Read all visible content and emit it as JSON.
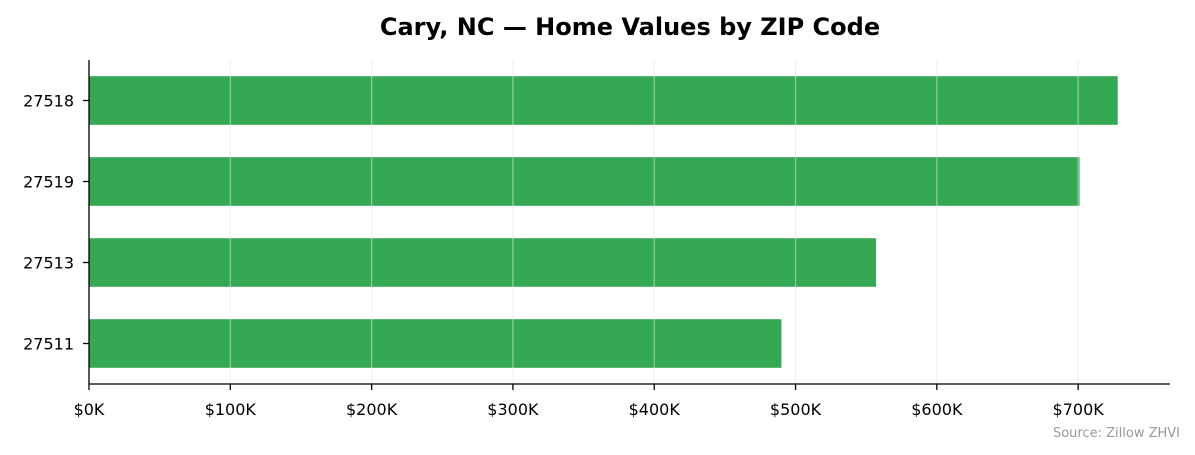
{
  "chart_data": {
    "type": "bar",
    "orientation": "horizontal",
    "title": "Cary, NC — Home Values by ZIP Code",
    "categories": [
      "27518",
      "27519",
      "27513",
      "27511"
    ],
    "values": [
      728000,
      701000,
      557000,
      490000
    ],
    "xlabel": "",
    "ylabel": "",
    "xlim": [
      0,
      765000
    ],
    "x_ticks": [
      0,
      100000,
      200000,
      300000,
      400000,
      500000,
      600000,
      700000
    ],
    "x_tick_labels": [
      "$0K",
      "$100K",
      "$200K",
      "$300K",
      "$400K",
      "$500K",
      "$600K",
      "$700K"
    ],
    "grid": "vertical",
    "bar_color": "#34a853",
    "source": "Source: Zillow ZHVI"
  }
}
